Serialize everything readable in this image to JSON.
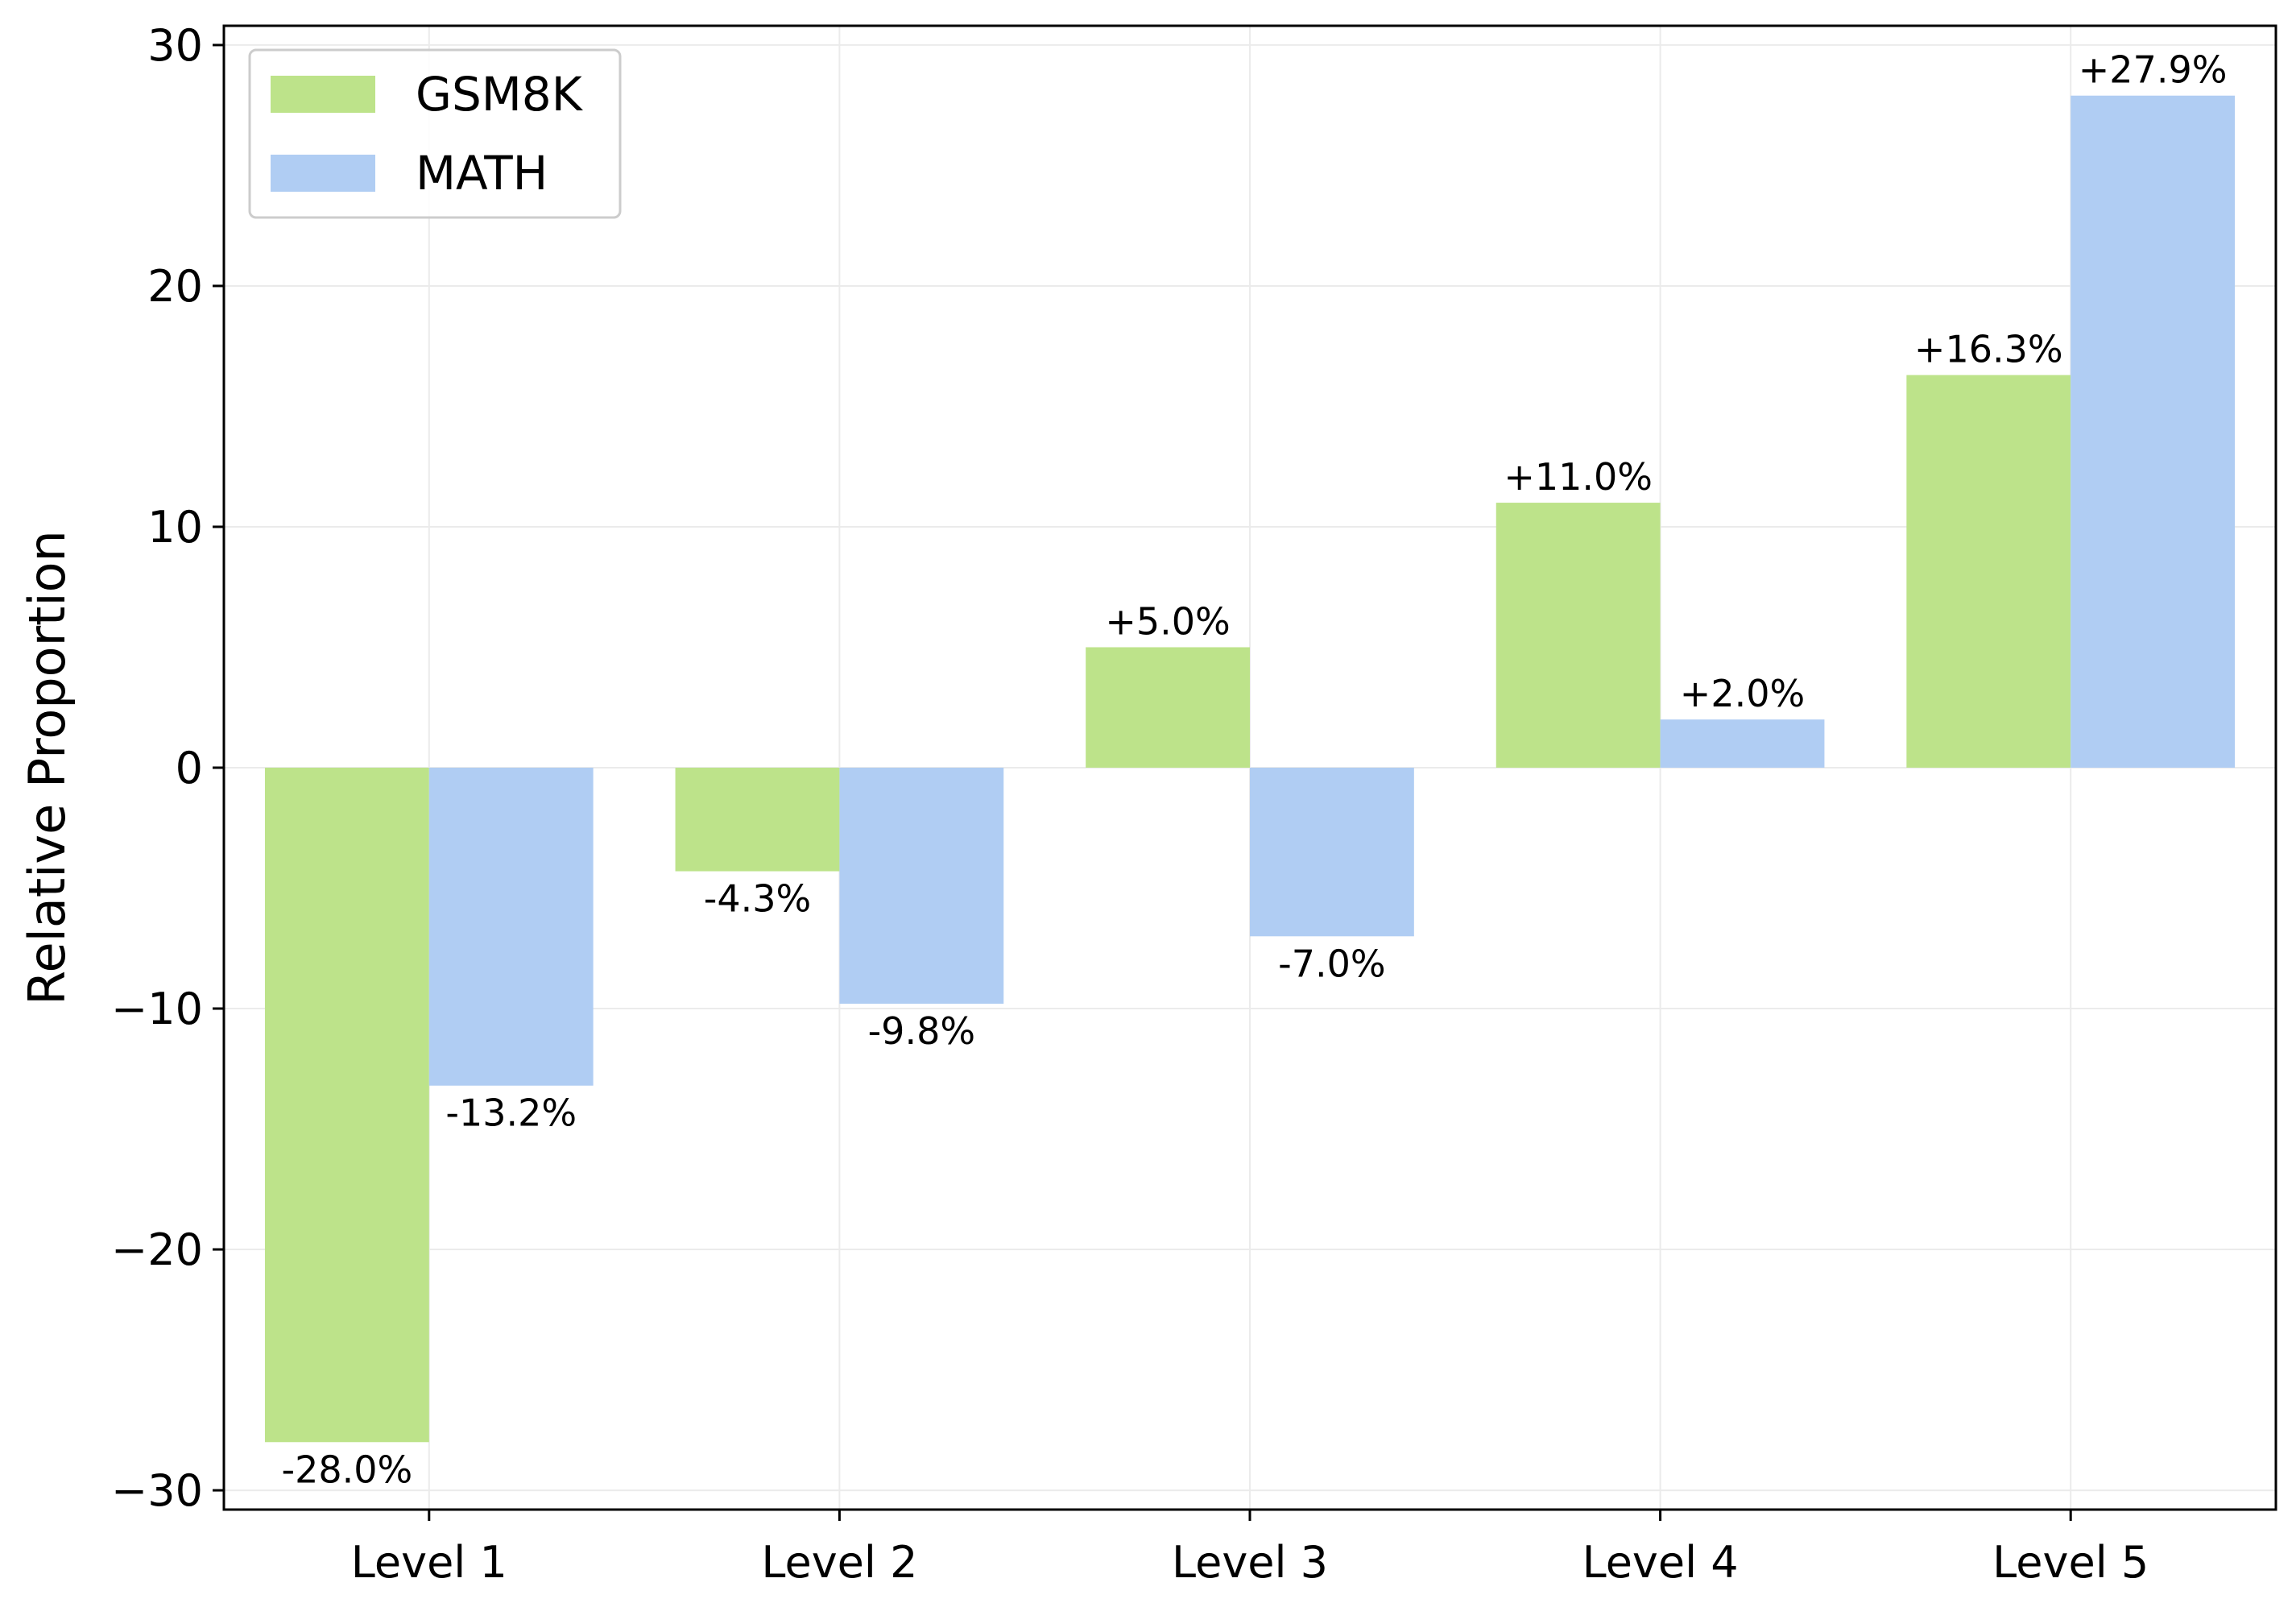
{
  "chart_data": {
    "type": "bar",
    "categories": [
      "Level 1",
      "Level 2",
      "Level 3",
      "Level 4",
      "Level 5"
    ],
    "series": [
      {
        "name": "GSM8K",
        "color": "#bde38a",
        "values": [
          -28.0,
          -4.3,
          5.0,
          11.0,
          16.3
        ],
        "labels": [
          "-28.0%",
          "-4.3%",
          "+5.0%",
          "+11.0%",
          "+16.3%"
        ]
      },
      {
        "name": "MATH",
        "color": "#b0cdf3",
        "values": [
          -13.2,
          -9.8,
          -7.0,
          2.0,
          27.9
        ],
        "labels": [
          "-13.2%",
          "-9.8%",
          "-7.0%",
          "+2.0%",
          "+27.9%"
        ]
      }
    ],
    "title": "",
    "xlabel": "",
    "ylabel": "Relative Proportion",
    "ylim": [
      -30.8,
      30.8
    ],
    "yticks": [
      30,
      20,
      10,
      0,
      -10,
      -20,
      -30
    ],
    "ytick_labels": [
      "30",
      "20",
      "10",
      "0",
      "−10",
      "−20",
      "−30"
    ],
    "grid": true,
    "legend_position": "top-left"
  }
}
